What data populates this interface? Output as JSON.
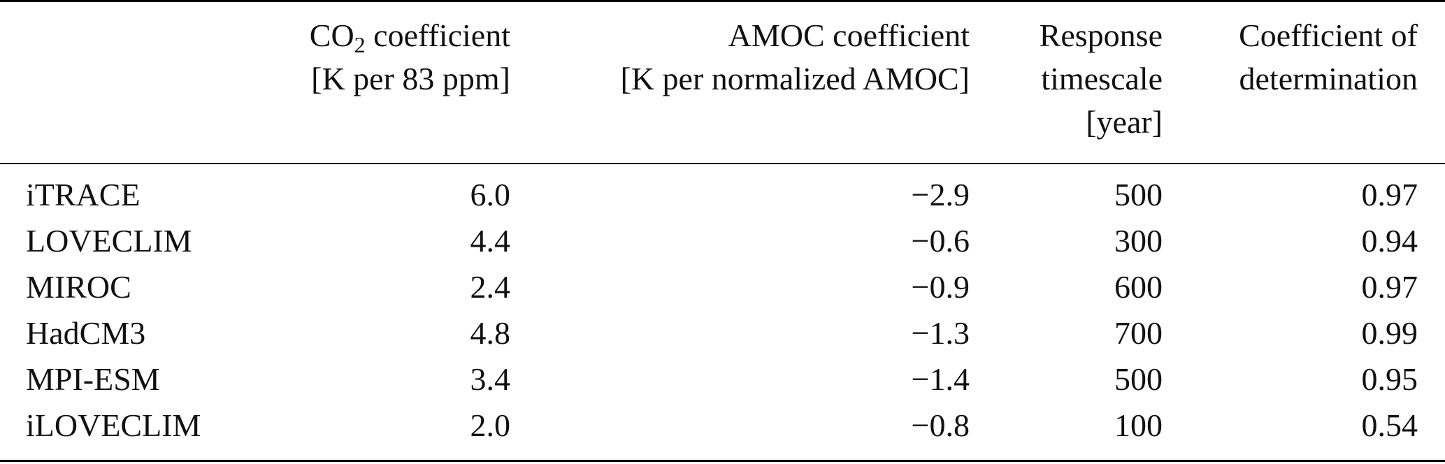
{
  "table": {
    "headers": {
      "co2": {
        "pre": "CO",
        "sub": "2",
        "post": " coefficient",
        "line2": "[K per 83 ppm]"
      },
      "amoc": {
        "line1": "AMOC coefficient",
        "line2": "[K per normalized AMOC]"
      },
      "response": {
        "line1": "Response",
        "line2": "timescale",
        "line3": "[year]"
      },
      "determination": {
        "line1": "Coefficient of",
        "line2": "determination"
      }
    },
    "rows": [
      {
        "model": "iTRACE",
        "co2": "6.0",
        "amoc": "−2.9",
        "response": "500",
        "determination": "0.97"
      },
      {
        "model": "LOVECLIM",
        "co2": "4.4",
        "amoc": "−0.6",
        "response": "300",
        "determination": "0.94"
      },
      {
        "model": "MIROC",
        "co2": "2.4",
        "amoc": "−0.9",
        "response": "600",
        "determination": "0.97"
      },
      {
        "model": "HadCM3",
        "co2": "4.8",
        "amoc": "−1.3",
        "response": "700",
        "determination": "0.99"
      },
      {
        "model": "MPI-ESM",
        "co2": "3.4",
        "amoc": "−1.4",
        "response": "500",
        "determination": "0.95"
      },
      {
        "model": "iLOVECLIM",
        "co2": "2.0",
        "amoc": "−0.8",
        "response": "100",
        "determination": "0.54"
      }
    ]
  }
}
